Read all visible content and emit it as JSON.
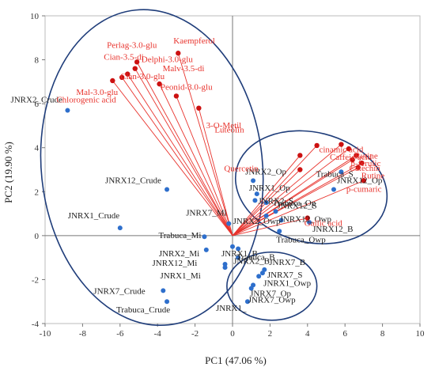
{
  "chart_data": {
    "type": "scatter",
    "title": "",
    "xlabel": "PC1 (47.06 %)",
    "ylabel": "PC2 (19.90 %)",
    "xlim": [
      -10,
      10
    ],
    "ylim": [
      -4,
      10
    ],
    "xticks": [
      -10,
      -8,
      -6,
      -4,
      -2,
      0,
      2,
      4,
      6,
      8,
      10
    ],
    "yticks": [
      -4,
      -2,
      0,
      2,
      4,
      6,
      8,
      10
    ],
    "grid": false,
    "colors": {
      "observations": "#2e6fcc",
      "variables": "#cc1111",
      "vectors": "#e8332d",
      "labels_variables": "#e8332d",
      "ellipse": "#1f3d7a"
    },
    "series": [
      {
        "name": "Observations",
        "points": [
          {
            "label": "JNRX2_Crude",
            "x": -8.8,
            "y": 5.7
          },
          {
            "label": "JNRX12_Crude",
            "x": -3.5,
            "y": 2.1
          },
          {
            "label": "JNRX1_Crude",
            "x": -6.0,
            "y": 0.35
          },
          {
            "label": "JNRX7_Mi",
            "x": -0.2,
            "y": 0.55
          },
          {
            "label": "Trabuca_Mi",
            "x": -1.5,
            "y": -0.05
          },
          {
            "label": "JNRX2_Mi",
            "x": -1.4,
            "y": -0.65
          },
          {
            "label": "JNRX12_Mi",
            "x": -0.4,
            "y": -1.3
          },
          {
            "label": "JNRX1_Mi",
            "x": -0.4,
            "y": -1.45
          },
          {
            "label": "JNRX1_B",
            "x": 0.0,
            "y": -0.5
          },
          {
            "label": "Trabuca_B",
            "x": 0.3,
            "y": -0.6
          },
          {
            "label": "JNRX2_B",
            "x": 0.3,
            "y": -1.0
          },
          {
            "label": "JNRX7_Crude",
            "x": -3.7,
            "y": -2.5
          },
          {
            "label": "Trabuca_Crude",
            "x": -3.5,
            "y": -3.0
          },
          {
            "label": "JNRX2_Op",
            "x": 1.1,
            "y": 2.5
          },
          {
            "label": "JNRX1_Op",
            "x": 1.3,
            "y": 1.9
          },
          {
            "label": "JNRX2_S",
            "x": 1.2,
            "y": 1.6
          },
          {
            "label": "Trabuca_Op",
            "x": 1.8,
            "y": 1.5
          },
          {
            "label": "JNRX12_S",
            "x": 2.3,
            "y": 1.1
          },
          {
            "label": "JNRX2_Owp",
            "x": 1.8,
            "y": 0.9
          },
          {
            "label": "JNRX12_Owp",
            "x": 2.6,
            "y": 0.7
          },
          {
            "label": "Trabuca_Owp",
            "x": 2.5,
            "y": 0.2
          },
          {
            "label": "JNRX12_B",
            "x": 4.1,
            "y": 0.6
          },
          {
            "label": "Trabuca_S",
            "x": 5.8,
            "y": 2.9
          },
          {
            "label": "JNRX12_Op",
            "x": 5.4,
            "y": 2.1
          },
          {
            "label": "JNRX7_B",
            "x": 1.7,
            "y": -1.55
          },
          {
            "label": "JNRX7_S",
            "x": 1.6,
            "y": -1.7
          },
          {
            "label": "JNRX1_Owp",
            "x": 1.4,
            "y": -1.85
          },
          {
            "label": "JNRX7_Op",
            "x": 1.1,
            "y": -2.25
          },
          {
            "label": "JNRX7_Owp",
            "x": 1.0,
            "y": -2.4
          },
          {
            "label": "JNRX1_",
            "x": 0.8,
            "y": -3.0
          }
        ]
      },
      {
        "name": "Variables",
        "points": [
          {
            "label": "Kaempferol",
            "x": -2.9,
            "y": 8.3
          },
          {
            "label": "Perlag-3.0-glu",
            "x": -5.1,
            "y": 7.9
          },
          {
            "label": "Delphi-3.0-glu",
            "x": -5.2,
            "y": 7.6
          },
          {
            "label": "Cian-3.5-di",
            "x": -5.6,
            "y": 7.35
          },
          {
            "label": "Cian-3.0-glu",
            "x": -5.9,
            "y": 7.2
          },
          {
            "label": "Malv-3.5-di",
            "x": -3.9,
            "y": 6.9
          },
          {
            "label": "Mal-3.0-glu",
            "x": -6.4,
            "y": 7.05
          },
          {
            "label": "Peonid-3.0-glu",
            "x": -3.0,
            "y": 6.35
          },
          {
            "label": "Chlorogenic acid",
            "x": -1.8,
            "y": 5.8
          },
          {
            "label": "3-O-Metil",
            "x": 4.5,
            "y": 4.1
          },
          {
            "label": "Luteolin",
            "x": 3.6,
            "y": 3.65
          },
          {
            "label": "Quercetin",
            "x": 3.6,
            "y": 3.0
          },
          {
            "label": "cinamic acid",
            "x": 5.8,
            "y": 4.15
          },
          {
            "label": "Caffeic acid",
            "x": 6.2,
            "y": 3.95
          },
          {
            "label": "Rutine",
            "x": 6.6,
            "y": 3.65
          },
          {
            "label": "Catechin",
            "x": 6.4,
            "y": 3.45
          },
          {
            "label": "p-ferulic",
            "x": 6.9,
            "y": 3.3
          },
          {
            "label": "Rutine",
            "x": 6.7,
            "y": 3.1
          },
          {
            "label": "p-cumaric",
            "x": 7.0,
            "y": 2.5
          },
          {
            "label": "Gallic acid",
            "x": 4.0,
            "y": 0.8
          }
        ]
      }
    ],
    "vector_origin": [
      0,
      0
    ],
    "annotations": [
      {
        "type": "ellipse",
        "encloses": "left group",
        "cx": -4.3,
        "cy": 3.1,
        "rx": 5.9,
        "ry": 7.2,
        "rotation_deg": -6
      },
      {
        "type": "ellipse",
        "encloses": "upper-right group",
        "cx": 4.2,
        "cy": 2.2,
        "rx": 4.1,
        "ry": 2.5,
        "rotation_deg": 14
      },
      {
        "type": "ellipse",
        "encloses": "lower-right group",
        "cx": 2.1,
        "cy": -2.3,
        "rx": 2.4,
        "ry": 1.55,
        "rotation_deg": 0
      }
    ]
  }
}
